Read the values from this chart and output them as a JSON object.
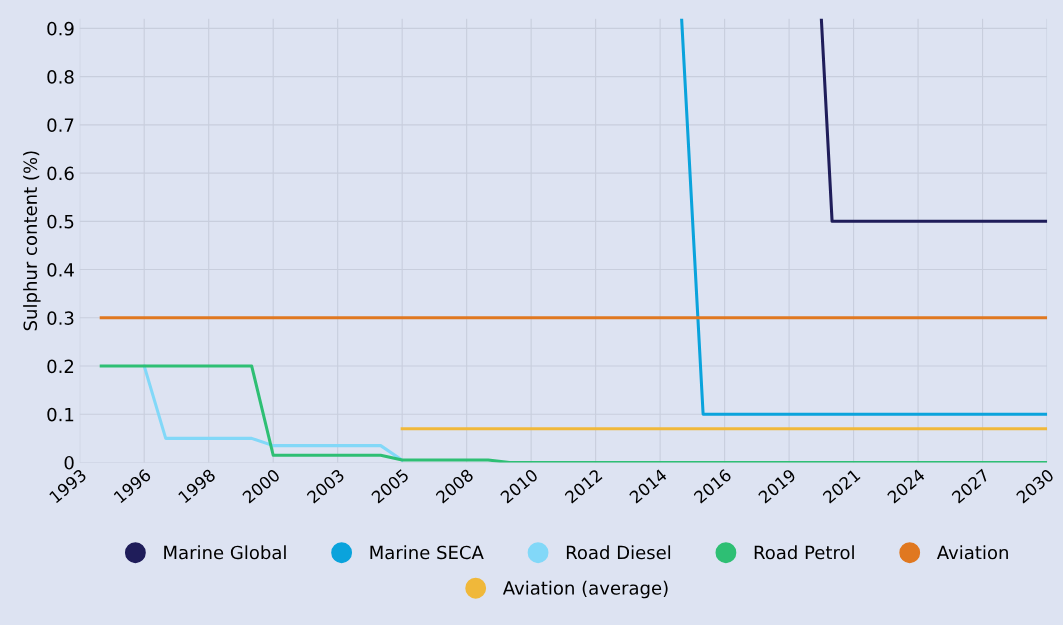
{
  "chart_data": {
    "type": "line",
    "ylabel": "Sulphur content (%)",
    "categories": [
      "1993",
      null,
      null,
      null,
      null,
      null,
      "1996",
      null,
      null,
      null,
      null,
      null,
      "1998",
      null,
      null,
      null,
      null,
      null,
      "2000",
      null,
      null,
      null,
      null,
      null,
      "2003",
      null,
      null,
      null,
      null,
      null,
      "2005",
      null,
      null,
      null,
      null,
      null,
      "2008",
      null,
      null,
      null,
      null,
      null,
      "2010",
      null,
      null,
      null,
      null,
      null,
      "2012",
      null,
      null,
      null,
      null,
      null,
      "2014",
      null,
      null,
      null,
      null,
      null,
      "2016",
      null,
      null,
      null,
      null,
      null,
      "2019",
      null,
      null,
      null,
      null,
      null,
      "2021",
      null,
      null,
      null,
      null,
      null,
      "2024",
      null,
      null,
      null,
      null,
      null,
      "2027",
      null,
      null,
      null,
      null,
      null,
      "2030"
    ],
    "ylim": [
      0,
      0.92
    ],
    "yticks": [
      0,
      0.1,
      0.2,
      0.3,
      0.4,
      0.5,
      0.6,
      0.7,
      0.8,
      0.9
    ],
    "grid": true,
    "legend": "bottom",
    "marker": "none",
    "line_style": "solid",
    "series": [
      {
        "name": "Marine Global",
        "color": "#1f1d5a",
        "values": [
          null,
          null,
          null,
          null,
          null,
          null,
          null,
          null,
          null,
          null,
          null,
          null,
          null,
          null,
          null,
          null,
          null,
          null,
          null,
          null,
          null,
          null,
          null,
          null,
          null,
          null,
          null,
          null,
          null,
          null,
          null,
          null,
          null,
          null,
          null,
          null,
          null,
          null,
          null,
          null,
          null,
          null,
          null,
          null,
          null,
          null,
          null,
          null,
          null,
          null,
          null,
          null,
          null,
          null,
          null,
          null,
          null,
          null,
          null,
          null,
          null,
          null,
          null,
          null,
          null,
          null,
          null,
          null,
          null,
          0.92,
          0.5,
          null,
          null,
          null,
          null,
          null,
          null,
          null,
          null,
          null,
          null,
          null,
          null,
          null,
          null,
          null,
          null,
          null,
          null,
          null,
          0.5
        ]
      },
      {
        "name": "Marine SECA",
        "color": "#0aa3dc",
        "values": [
          null,
          null,
          null,
          null,
          null,
          null,
          null,
          null,
          null,
          null,
          null,
          null,
          null,
          null,
          null,
          null,
          null,
          null,
          null,
          null,
          null,
          null,
          null,
          null,
          null,
          null,
          null,
          null,
          null,
          null,
          null,
          null,
          null,
          null,
          null,
          null,
          null,
          null,
          null,
          null,
          null,
          null,
          null,
          null,
          null,
          null,
          null,
          null,
          null,
          null,
          null,
          null,
          null,
          null,
          null,
          null,
          0.92,
          null,
          0.1,
          null,
          null,
          null,
          null,
          null,
          null,
          null,
          null,
          null,
          null,
          null,
          null,
          null,
          null,
          null,
          null,
          null,
          null,
          null,
          null,
          null,
          null,
          null,
          null,
          null,
          null,
          null,
          null,
          null,
          null,
          null,
          0.1
        ]
      },
      {
        "name": "Road Diesel",
        "color": "#82d8f8",
        "values": [
          null,
          null,
          null,
          null,
          null,
          null,
          0.2,
          null,
          0.05,
          null,
          null,
          null,
          null,
          null,
          null,
          null,
          0.05,
          null,
          0.035,
          null,
          null,
          null,
          null,
          null,
          null,
          null,
          null,
          null,
          0.035,
          null,
          0.005,
          null,
          null,
          null,
          null,
          null,
          null,
          null,
          null,
          null,
          null,
          null,
          null,
          null,
          null,
          null,
          null,
          null,
          null,
          null,
          null,
          null,
          null,
          null,
          null,
          null,
          null,
          null,
          null,
          null,
          null,
          null,
          null,
          null,
          null,
          null,
          null,
          null,
          null,
          null,
          null,
          null,
          null,
          null,
          null,
          null,
          null,
          null,
          null,
          null,
          null,
          null,
          null,
          null,
          null,
          null,
          null,
          null,
          null,
          null,
          null
        ]
      },
      {
        "name": "Road Petrol",
        "color": "#2ebf74",
        "values": [
          null,
          null,
          0.2,
          null,
          null,
          null,
          null,
          null,
          null,
          null,
          null,
          null,
          null,
          null,
          null,
          null,
          0.2,
          null,
          0.015,
          null,
          null,
          null,
          null,
          null,
          null,
          null,
          null,
          null,
          0.015,
          null,
          0.005,
          null,
          null,
          null,
          null,
          null,
          null,
          null,
          0.005,
          null,
          0,
          null,
          null,
          null,
          null,
          null,
          null,
          null,
          null,
          null,
          null,
          null,
          null,
          null,
          null,
          null,
          null,
          null,
          null,
          null,
          null,
          null,
          null,
          null,
          null,
          null,
          null,
          null,
          null,
          null,
          null,
          null,
          null,
          null,
          null,
          null,
          null,
          null,
          null,
          null,
          null,
          null,
          null,
          null,
          null,
          null,
          null,
          null,
          null,
          null,
          0
        ]
      },
      {
        "name": "Aviation",
        "color": "#e07820",
        "values": [
          null,
          null,
          0.3,
          null,
          null,
          null,
          null,
          null,
          null,
          null,
          null,
          null,
          null,
          null,
          null,
          null,
          null,
          null,
          null,
          null,
          null,
          null,
          null,
          null,
          null,
          null,
          null,
          null,
          null,
          null,
          null,
          null,
          null,
          null,
          null,
          null,
          null,
          null,
          null,
          null,
          null,
          null,
          null,
          null,
          null,
          null,
          null,
          null,
          null,
          null,
          null,
          null,
          null,
          null,
          null,
          null,
          null,
          null,
          null,
          null,
          null,
          null,
          null,
          null,
          null,
          null,
          null,
          null,
          null,
          null,
          null,
          null,
          null,
          null,
          null,
          null,
          null,
          null,
          null,
          null,
          null,
          null,
          null,
          null,
          null,
          null,
          null,
          null,
          null,
          null,
          0.3
        ]
      },
      {
        "name": "Aviation (average)",
        "color": "#f0b83a",
        "values": [
          null,
          null,
          null,
          null,
          null,
          null,
          null,
          null,
          null,
          null,
          null,
          null,
          null,
          null,
          null,
          null,
          null,
          null,
          null,
          null,
          null,
          null,
          null,
          null,
          null,
          null,
          null,
          null,
          null,
          null,
          0.07,
          null,
          null,
          null,
          null,
          null,
          null,
          null,
          null,
          null,
          null,
          null,
          null,
          null,
          null,
          null,
          null,
          null,
          null,
          null,
          null,
          null,
          null,
          null,
          null,
          null,
          null,
          null,
          null,
          null,
          null,
          null,
          null,
          null,
          null,
          null,
          null,
          null,
          null,
          null,
          null,
          null,
          null,
          null,
          null,
          null,
          null,
          null,
          null,
          null,
          null,
          null,
          null,
          null,
          null,
          null,
          null,
          null,
          null,
          null,
          0.07
        ]
      }
    ]
  }
}
